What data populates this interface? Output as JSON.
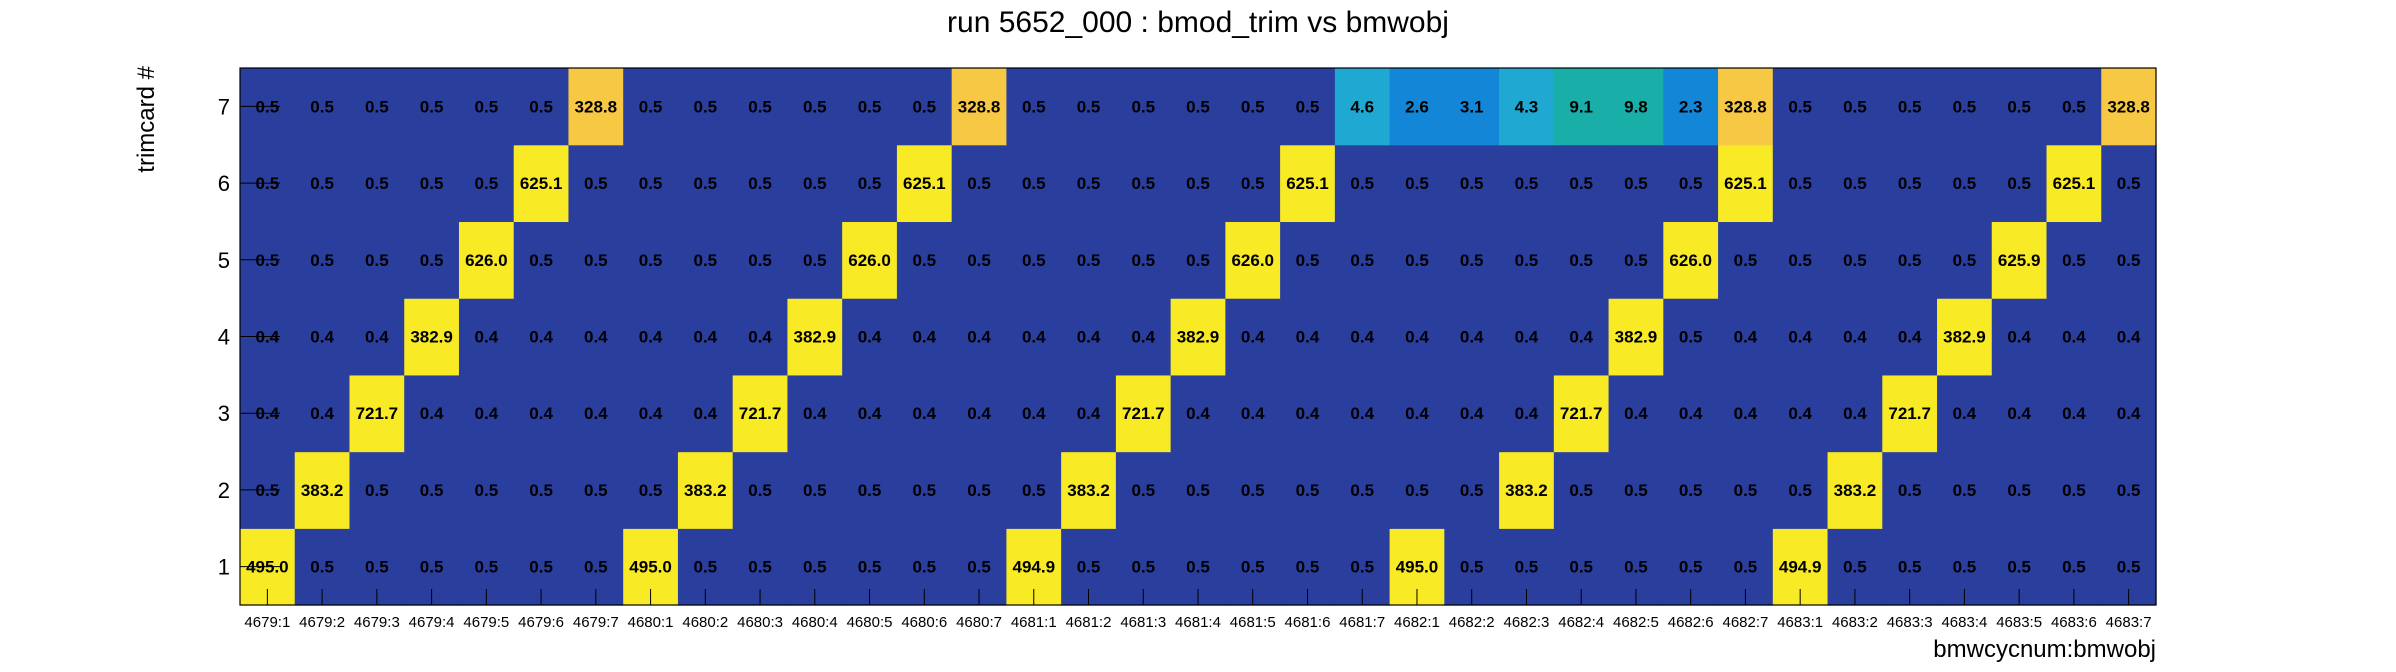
{
  "chart_data": {
    "type": "heatmap",
    "title": "run 5652_000 : bmod_trim vs bmwobj",
    "xlabel": "bmwcycnum:bmwobj",
    "ylabel": "trimcard #",
    "categories": [
      "4679:1",
      "4679:2",
      "4679:3",
      "4679:4",
      "4679:5",
      "4679:6",
      "4679:7",
      "4680:1",
      "4680:2",
      "4680:3",
      "4680:4",
      "4680:5",
      "4680:6",
      "4680:7",
      "4681:1",
      "4681:2",
      "4681:3",
      "4681:4",
      "4681:5",
      "4681:6",
      "4681:7",
      "4682:1",
      "4682:2",
      "4682:3",
      "4682:4",
      "4682:5",
      "4682:6",
      "4682:7",
      "4683:1",
      "4683:2",
      "4683:3",
      "4683:4",
      "4683:5",
      "4683:6",
      "4683:7"
    ],
    "y": [
      "1",
      "2",
      "3",
      "4",
      "5",
      "6",
      "7"
    ],
    "grid": false,
    "legend": "none",
    "colors": {
      "low": "#2a3e9e",
      "cyan": "#1fa8d2",
      "teal": "#1aaea8",
      "blue_mid": "#1486d8",
      "orange": "#f7c843",
      "yellow": "#f8ea25"
    },
    "rows": [
      {
        "trimcard": "1",
        "values": [
          "495.0",
          "0.5",
          "0.5",
          "0.5",
          "0.5",
          "0.5",
          "0.5",
          "495.0",
          "0.5",
          "0.5",
          "0.5",
          "0.5",
          "0.5",
          "0.5",
          "494.9",
          "0.5",
          "0.5",
          "0.5",
          "0.5",
          "0.5",
          "0.5",
          "495.0",
          "0.5",
          "0.5",
          "0.5",
          "0.5",
          "0.5",
          "0.5",
          "494.9",
          "0.5",
          "0.5",
          "0.5",
          "0.5",
          "0.5",
          "0.5"
        ]
      },
      {
        "trimcard": "2",
        "values": [
          "0.5",
          "383.2",
          "0.5",
          "0.5",
          "0.5",
          "0.5",
          "0.5",
          "0.5",
          "383.2",
          "0.5",
          "0.5",
          "0.5",
          "0.5",
          "0.5",
          "0.5",
          "383.2",
          "0.5",
          "0.5",
          "0.5",
          "0.5",
          "0.5",
          "0.5",
          "0.5",
          "383.2",
          "0.5",
          "0.5",
          "0.5",
          "0.5",
          "0.5",
          "383.2",
          "0.5",
          "0.5",
          "0.5",
          "0.5",
          "0.5"
        ]
      },
      {
        "trimcard": "3",
        "values": [
          "0.4",
          "0.4",
          "721.7",
          "0.4",
          "0.4",
          "0.4",
          "0.4",
          "0.4",
          "0.4",
          "721.7",
          "0.4",
          "0.4",
          "0.4",
          "0.4",
          "0.4",
          "0.4",
          "721.7",
          "0.4",
          "0.4",
          "0.4",
          "0.4",
          "0.4",
          "0.4",
          "0.4",
          "721.7",
          "0.4",
          "0.4",
          "0.4",
          "0.4",
          "0.4",
          "721.7",
          "0.4",
          "0.4",
          "0.4",
          "0.4"
        ]
      },
      {
        "trimcard": "4",
        "values": [
          "0.4",
          "0.4",
          "0.4",
          "382.9",
          "0.4",
          "0.4",
          "0.4",
          "0.4",
          "0.4",
          "0.4",
          "382.9",
          "0.4",
          "0.4",
          "0.4",
          "0.4",
          "0.4",
          "0.4",
          "382.9",
          "0.4",
          "0.4",
          "0.4",
          "0.4",
          "0.4",
          "0.4",
          "0.4",
          "382.9",
          "0.5",
          "0.4",
          "0.4",
          "0.4",
          "0.4",
          "382.9",
          "0.4",
          "0.4",
          "0.4"
        ]
      },
      {
        "trimcard": "5",
        "values": [
          "0.5",
          "0.5",
          "0.5",
          "0.5",
          "626.0",
          "0.5",
          "0.5",
          "0.5",
          "0.5",
          "0.5",
          "0.5",
          "626.0",
          "0.5",
          "0.5",
          "0.5",
          "0.5",
          "0.5",
          "0.5",
          "626.0",
          "0.5",
          "0.5",
          "0.5",
          "0.5",
          "0.5",
          "0.5",
          "0.5",
          "626.0",
          "0.5",
          "0.5",
          "0.5",
          "0.5",
          "0.5",
          "625.9",
          "0.5",
          "0.5"
        ]
      },
      {
        "trimcard": "6",
        "values": [
          "0.5",
          "0.5",
          "0.5",
          "0.5",
          "0.5",
          "625.1",
          "0.5",
          "0.5",
          "0.5",
          "0.5",
          "0.5",
          "0.5",
          "625.1",
          "0.5",
          "0.5",
          "0.5",
          "0.5",
          "0.5",
          "0.5",
          "625.1",
          "0.5",
          "0.5",
          "0.5",
          "0.5",
          "0.5",
          "0.5",
          "0.5",
          "625.1",
          "0.5",
          "0.5",
          "0.5",
          "0.5",
          "0.5",
          "625.1",
          "0.5"
        ]
      },
      {
        "trimcard": "7",
        "values": [
          "0.5",
          "0.5",
          "0.5",
          "0.5",
          "0.5",
          "0.5",
          "328.8",
          "0.5",
          "0.5",
          "0.5",
          "0.5",
          "0.5",
          "0.5",
          "328.8",
          "0.5",
          "0.5",
          "0.5",
          "0.5",
          "0.5",
          "0.5",
          "4.6",
          "2.6",
          "3.1",
          "4.3",
          "9.1",
          "9.8",
          "2.3",
          "328.8",
          "0.5",
          "0.5",
          "0.5",
          "0.5",
          "0.5",
          "0.5",
          "328.8"
        ]
      }
    ]
  }
}
